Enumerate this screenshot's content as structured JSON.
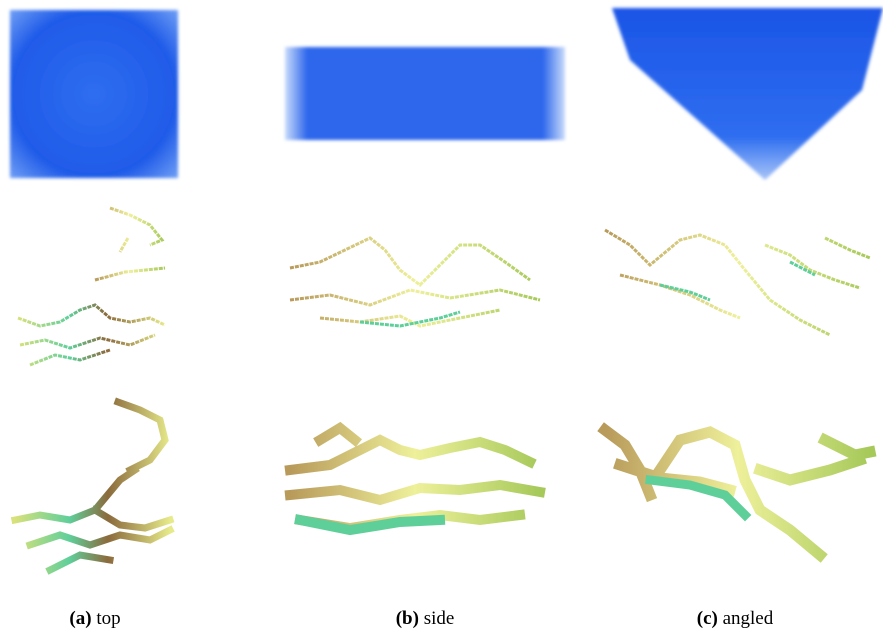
{
  "captions": [
    {
      "label": "(a)",
      "text": "top"
    },
    {
      "label": "(b)",
      "text": "side"
    },
    {
      "label": "(c)",
      "text": "angled"
    }
  ]
}
